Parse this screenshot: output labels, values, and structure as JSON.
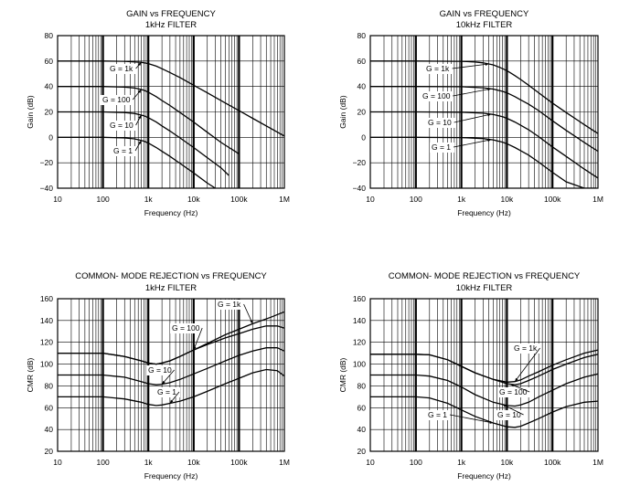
{
  "chart_data": [
    {
      "type": "line",
      "title": "GAIN vs FREQUENCY",
      "subtitle": "1kHz FILTER",
      "xlabel": "Frequency (Hz)",
      "ylabel": "Gain (dB)",
      "x_scale": "log",
      "xlim": [
        10,
        1000000
      ],
      "ylim": [
        -40,
        80
      ],
      "x_ticks": [
        "10",
        "100",
        "1k",
        "10k",
        "100k",
        "1M"
      ],
      "y_ticks": [
        "80",
        "60",
        "40",
        "20",
        "0",
        "−20",
        "−40"
      ],
      "grid": true,
      "series": [
        {
          "name": "G = 1k",
          "x": [
            10,
            100,
            300,
            700,
            1000,
            1500,
            2000,
            3000,
            5000,
            10000,
            20000,
            50000,
            100000,
            200000,
            500000,
            1000000
          ],
          "y": [
            60,
            60,
            59.8,
            59,
            58,
            56,
            54,
            51,
            47,
            41,
            35,
            27,
            21,
            15,
            7,
            1
          ]
        },
        {
          "name": "G = 100",
          "x": [
            10,
            100,
            300,
            500,
            800,
            1000,
            1500,
            2000,
            3000,
            5000,
            10000,
            20000,
            40000,
            100000
          ],
          "y": [
            40,
            40,
            39.5,
            38.8,
            37,
            35.5,
            32,
            29,
            25,
            19.5,
            12,
            4,
            -4,
            -13
          ]
        },
        {
          "name": "G = 10",
          "x": [
            10,
            100,
            300,
            500,
            800,
            1000,
            1500,
            2000,
            3000,
            5000,
            10000,
            20000,
            40000,
            60000
          ],
          "y": [
            20,
            20,
            19.5,
            18.8,
            17,
            15.5,
            12,
            9,
            5,
            -0.5,
            -8,
            -16,
            -24,
            -30
          ]
        },
        {
          "name": "G = 1",
          "x": [
            10,
            100,
            300,
            500,
            800,
            1000,
            1500,
            2000,
            3000,
            5000,
            10000,
            20000,
            30000
          ],
          "y": [
            0,
            0,
            -0.5,
            -1.2,
            -3,
            -4.5,
            -8,
            -11,
            -15,
            -20.5,
            -28,
            -36,
            -40
          ]
        }
      ],
      "callouts": [
        {
          "text": "G = 1k",
          "series": 0
        },
        {
          "text": "G = 100",
          "series": 1
        },
        {
          "text": "G = 10",
          "series": 2
        },
        {
          "text": "G = 1",
          "series": 3
        }
      ]
    },
    {
      "type": "line",
      "title": "GAIN vs FREQUENCY",
      "subtitle": "10kHz FILTER",
      "xlabel": "Frequency (Hz)",
      "ylabel": "Gain (dB)",
      "x_scale": "log",
      "xlim": [
        10,
        1000000
      ],
      "ylim": [
        -40,
        80
      ],
      "x_ticks": [
        "10",
        "100",
        "1k",
        "10k",
        "100k",
        "1M"
      ],
      "y_ticks": [
        "80",
        "60",
        "40",
        "20",
        "0",
        "−20",
        "−40"
      ],
      "grid": true,
      "series": [
        {
          "name": "G = 1k",
          "x": [
            10,
            100,
            1000,
            2000,
            3000,
            5000,
            7000,
            10000,
            15000,
            20000,
            30000,
            50000,
            100000,
            200000,
            500000,
            1000000
          ],
          "y": [
            60,
            60,
            59.8,
            59.3,
            58.6,
            57,
            55,
            52.5,
            48.5,
            45.5,
            41,
            35,
            27,
            19.5,
            10,
            3
          ]
        },
        {
          "name": "G = 100",
          "x": [
            10,
            100,
            1000,
            3000,
            5000,
            8000,
            10000,
            15000,
            20000,
            30000,
            50000,
            100000,
            200000,
            500000,
            1000000
          ],
          "y": [
            40,
            40,
            39.8,
            39,
            38,
            36.2,
            35,
            32,
            29.5,
            26,
            21,
            13,
            5.5,
            -4,
            -11
          ]
        },
        {
          "name": "G = 10",
          "x": [
            10,
            100,
            1000,
            3000,
            5000,
            8000,
            10000,
            15000,
            20000,
            30000,
            50000,
            100000,
            200000,
            500000,
            1000000
          ],
          "y": [
            20,
            20,
            19.8,
            19,
            18,
            16.2,
            15,
            12,
            9.5,
            6,
            0.5,
            -7.5,
            -15,
            -25,
            -32
          ]
        },
        {
          "name": "G = 1",
          "x": [
            10,
            100,
            1000,
            3000,
            5000,
            8000,
            10000,
            15000,
            20000,
            30000,
            50000,
            100000,
            200000,
            500000,
            900000
          ],
          "y": [
            0,
            0,
            -0.2,
            -1,
            -2,
            -3.8,
            -5,
            -8,
            -10.5,
            -14,
            -19.5,
            -27.5,
            -35,
            -40,
            -40
          ]
        }
      ],
      "callouts": [
        {
          "text": "G = 1k",
          "series": 0
        },
        {
          "text": "G = 100",
          "series": 1
        },
        {
          "text": "G = 10",
          "series": 2
        },
        {
          "text": "G = 1",
          "series": 3
        }
      ]
    },
    {
      "type": "line",
      "title": "COMMON- MODE REJECTION vs FREQUENCY",
      "subtitle": "1kHz FILTER",
      "xlabel": "Frequency (Hz)",
      "ylabel": "CMR (dB)",
      "x_scale": "log",
      "xlim": [
        10,
        1000000
      ],
      "ylim": [
        20,
        160
      ],
      "x_ticks": [
        "10",
        "100",
        "1k",
        "10k",
        "100k",
        "1M"
      ],
      "y_ticks": [
        "160",
        "140",
        "120",
        "100",
        "80",
        "60",
        "40",
        "20"
      ],
      "grid": true,
      "series": [
        {
          "name": "G = 1k",
          "x": [
            10,
            100,
            300,
            700,
            1000,
            1500,
            2000,
            3000,
            5000,
            10000,
            20000,
            50000,
            100000,
            200000,
            500000,
            1000000
          ],
          "y": [
            110,
            110,
            107,
            103,
            101,
            100,
            101,
            103,
            107,
            113,
            119,
            127,
            132,
            137,
            143,
            148
          ]
        },
        {
          "name": "G = 100",
          "x": [
            10,
            100,
            300,
            700,
            1000,
            1500,
            2000,
            3000,
            5000,
            10000,
            20000,
            50000,
            100000,
            200000,
            400000,
            700000,
            1000000
          ],
          "y": [
            110,
            110,
            107,
            103,
            101,
            100,
            101,
            103,
            107,
            113,
            118,
            124,
            128,
            132,
            135,
            135,
            133
          ]
        },
        {
          "name": "G = 10",
          "x": [
            10,
            100,
            300,
            700,
            1000,
            1500,
            2000,
            3000,
            5000,
            10000,
            20000,
            50000,
            100000,
            200000,
            400000,
            700000,
            1000000
          ],
          "y": [
            90,
            90,
            88,
            84,
            82,
            81,
            81.5,
            83,
            86,
            91,
            96,
            103,
            108,
            112,
            115,
            115,
            112
          ]
        },
        {
          "name": "G = 1",
          "x": [
            10,
            100,
            300,
            700,
            1000,
            1500,
            2000,
            3000,
            5000,
            10000,
            20000,
            50000,
            100000,
            200000,
            400000,
            700000,
            1000000
          ],
          "y": [
            70,
            70,
            68,
            65,
            63,
            62,
            62.5,
            64,
            66,
            70,
            75,
            82,
            87,
            92,
            95,
            94,
            89
          ]
        }
      ],
      "callouts": [
        {
          "text": "G = 1k",
          "series": 0
        },
        {
          "text": "G = 100",
          "series": 1
        },
        {
          "text": "G = 10",
          "series": 2
        },
        {
          "text": "G = 1",
          "series": 3
        }
      ]
    },
    {
      "type": "line",
      "title": "COMMON- MODE REJECTION vs FREQUENCY",
      "subtitle": "10kHz FILTER",
      "xlabel": "Frequency (Hz)",
      "ylabel": "CMR (dB)",
      "x_scale": "log",
      "xlim": [
        10,
        1000000
      ],
      "ylim": [
        20,
        160
      ],
      "x_ticks": [
        "10",
        "100",
        "1k",
        "10k",
        "100k",
        "1M"
      ],
      "y_ticks": [
        "160",
        "140",
        "120",
        "100",
        "80",
        "60",
        "40",
        "20"
      ],
      "grid": true,
      "series": [
        {
          "name": "G = 1k",
          "x": [
            10,
            100,
            200,
            500,
            1000,
            2000,
            5000,
            10000,
            15000,
            20000,
            30000,
            50000,
            100000,
            200000,
            500000,
            1000000
          ],
          "y": [
            109,
            109,
            108.5,
            104,
            98,
            92,
            86,
            83.5,
            84,
            85.5,
            89,
            93,
            99,
            104,
            110,
            113
          ]
        },
        {
          "name": "G = 100",
          "x": [
            10,
            100,
            200,
            500,
            1000,
            2000,
            5000,
            10000,
            15000,
            20000,
            30000,
            50000,
            100000,
            200000,
            500000,
            1000000
          ],
          "y": [
            109,
            109,
            108.5,
            104,
            98,
            92,
            86,
            82,
            81,
            82,
            85,
            89,
            95,
            100,
            106,
            109
          ]
        },
        {
          "name": "G = 10",
          "x": [
            10,
            100,
            200,
            500,
            1000,
            2000,
            5000,
            10000,
            15000,
            20000,
            30000,
            50000,
            100000,
            200000,
            500000,
            1000000
          ],
          "y": [
            90,
            90,
            89,
            85,
            79,
            72,
            65,
            62,
            61.5,
            62.5,
            65,
            70,
            76,
            82,
            88,
            91
          ]
        },
        {
          "name": "G = 1",
          "x": [
            10,
            100,
            200,
            500,
            1000,
            2000,
            5000,
            10000,
            15000,
            20000,
            30000,
            50000,
            100000,
            200000,
            500000,
            1000000
          ],
          "y": [
            70,
            70,
            69,
            64,
            58,
            52,
            46,
            42.5,
            42,
            43,
            46,
            50,
            56,
            61,
            65,
            66
          ]
        }
      ],
      "callouts": [
        {
          "text": "G = 1k",
          "series": 0
        },
        {
          "text": "G = 100",
          "series": 1
        },
        {
          "text": "G = 10",
          "series": 2
        },
        {
          "text": "G = 1",
          "series": 3
        }
      ]
    }
  ]
}
